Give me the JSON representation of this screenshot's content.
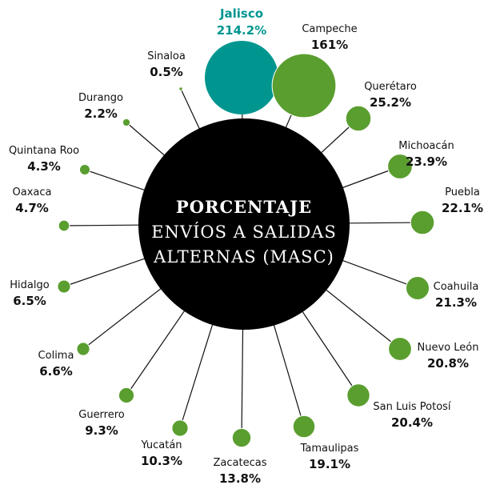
{
  "chart_data": {
    "type": "radial-bubble",
    "title": "PORCENTAJE",
    "subtitle_lines": [
      "ENVÍOS A SALIDAS",
      "ALTERNAS (MASC)"
    ],
    "categories": [
      "Jalisco",
      "Campeche",
      "Querétaro",
      "Michoacán",
      "Puebla",
      "Coahuila",
      "Nuevo León",
      "San Luis Potosí",
      "Tamaulipas",
      "Zacatecas",
      "Yucatán",
      "Guerrero",
      "Colima",
      "Hidalgo",
      "Oaxaca",
      "Quintana Roo",
      "Durango",
      "Sinaloa"
    ],
    "values": [
      214.2,
      161,
      25.2,
      23.9,
      22.1,
      21.3,
      20.8,
      20.4,
      19.1,
      13.8,
      10.3,
      9.3,
      6.6,
      6.5,
      4.7,
      4.3,
      2.2,
      0.5
    ],
    "value_labels": [
      "214.2%",
      "161%",
      "25.2%",
      "23.9%",
      "22.1%",
      "21.3%",
      "20.8%",
      "20.4%",
      "19.1%",
      "13.8%",
      "10.3%",
      "9.3%",
      "6.6%",
      "6.5%",
      "4.7%",
      "4.3%",
      "2.2%",
      "0.5%"
    ],
    "color": "#5a9e2f",
    "highlight_color": "#00968f",
    "highlight_category": "Jalisco"
  }
}
